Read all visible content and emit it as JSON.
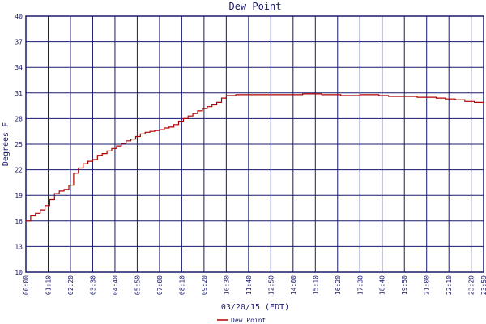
{
  "chart_data": {
    "type": "line",
    "title": "Dew Point",
    "xlabel": "03/20/15 (EDT)",
    "ylabel": "Degrees F",
    "ylim": [
      10,
      40
    ],
    "yticks": [
      "10",
      "13",
      "16",
      "19",
      "22",
      "25",
      "28",
      "31",
      "34",
      "37",
      "40"
    ],
    "xlim": [
      0,
      1439
    ],
    "xticks": [
      "00:00",
      "01:10",
      "02:20",
      "03:30",
      "04:40",
      "05:50",
      "07:00",
      "08:10",
      "09:20",
      "10:30",
      "11:40",
      "12:50",
      "14:00",
      "15:10",
      "16:20",
      "17:30",
      "18:40",
      "19:50",
      "21:00",
      "22:10",
      "23:20",
      "23:59"
    ],
    "grid": true,
    "legend_position": "bottom-center",
    "colors": {
      "grid": "#1a1a6e",
      "series": "#b00000",
      "text": "#1a1a6e"
    },
    "series": [
      {
        "name": "Dew Point",
        "x": [
          0,
          15,
          30,
          45,
          60,
          75,
          90,
          105,
          120,
          135,
          150,
          165,
          180,
          195,
          210,
          225,
          240,
          255,
          270,
          285,
          300,
          315,
          330,
          345,
          360,
          375,
          390,
          405,
          420,
          435,
          450,
          465,
          480,
          495,
          510,
          525,
          540,
          555,
          570,
          585,
          600,
          615,
          630,
          645,
          660,
          690,
          720,
          750,
          780,
          810,
          840,
          870,
          900,
          930,
          960,
          990,
          1020,
          1050,
          1080,
          1110,
          1140,
          1170,
          1200,
          1230,
          1260,
          1290,
          1320,
          1350,
          1380,
          1410,
          1439
        ],
        "y": [
          16.0,
          16.6,
          16.9,
          17.3,
          17.8,
          18.5,
          19.2,
          19.5,
          19.7,
          20.2,
          21.6,
          22.2,
          22.7,
          23.0,
          23.2,
          23.7,
          23.9,
          24.2,
          24.5,
          24.8,
          25.1,
          25.4,
          25.6,
          25.9,
          26.2,
          26.4,
          26.5,
          26.6,
          26.7,
          26.9,
          27.0,
          27.3,
          27.7,
          28.0,
          28.3,
          28.6,
          28.9,
          29.2,
          29.4,
          29.6,
          29.9,
          30.4,
          30.7,
          30.7,
          30.8,
          30.8,
          30.8,
          30.8,
          30.8,
          30.8,
          30.8,
          30.9,
          30.9,
          30.8,
          30.8,
          30.7,
          30.7,
          30.8,
          30.8,
          30.7,
          30.6,
          30.6,
          30.6,
          30.5,
          30.5,
          30.4,
          30.3,
          30.2,
          30.0,
          29.9,
          29.7
        ]
      }
    ]
  }
}
